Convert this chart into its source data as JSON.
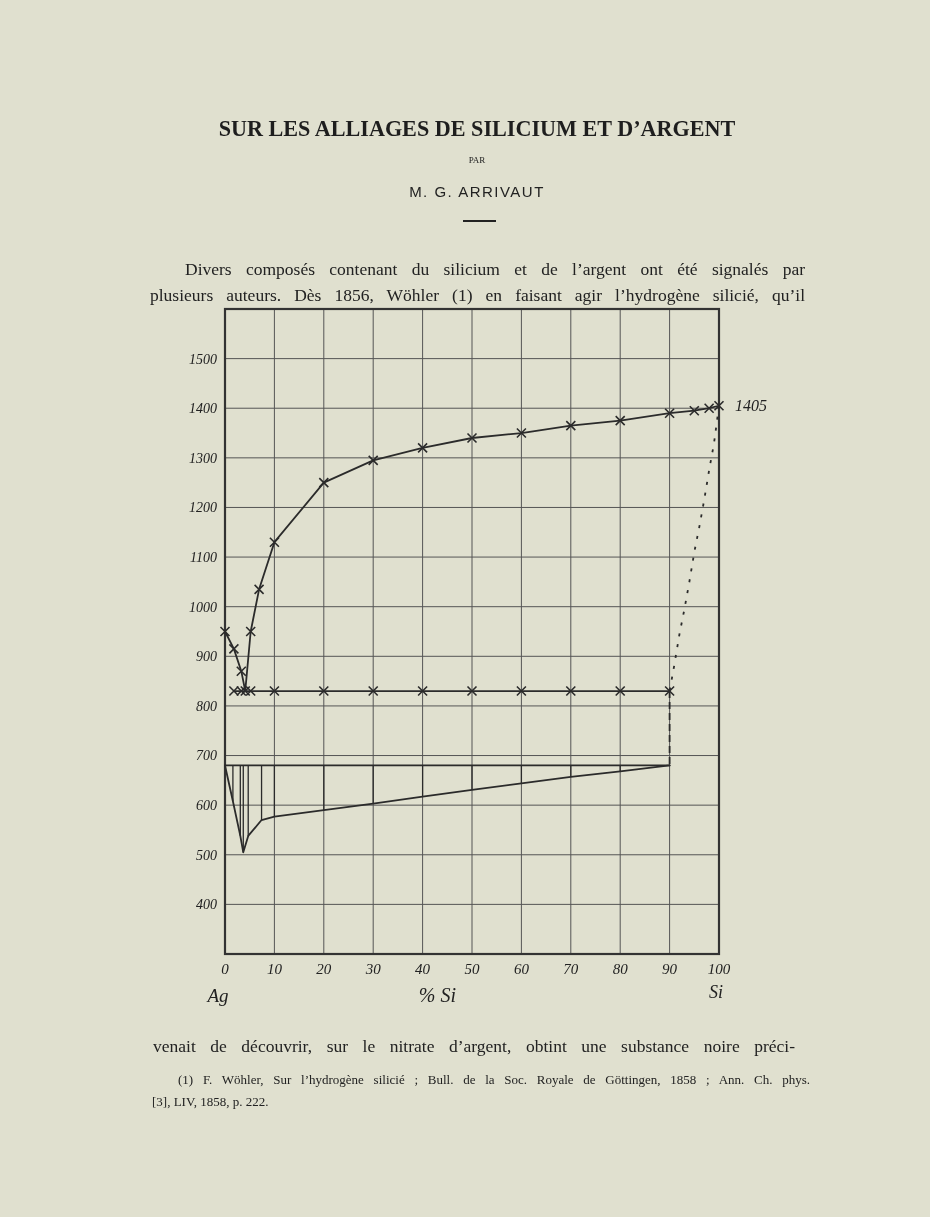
{
  "chart_data": {
    "type": "line",
    "title": "SUR LES ALLIAGES DE SILICIUM ET D’ARGENT",
    "xlabel": "% Si",
    "annotations": [
      "PAR",
      "M. G. ARRIVAUT",
      "Divers composés contenant du silicium et de l’argent ont été signalés par",
      "plusieurs auteurs. Dès 1856, Wöhler (1) en faisant agir l’hydrogène silicié, qu’il",
      "venait de découvrir, sur le nitrate d’argent, obtint une substance noire préci-",
      "(1) F. Wöhler, Sur l’hydrogène silicié ; Bull. de la Soc. Royale de Göttingen, 1858 ; Ann. Ch. phys.",
      "[3], LIV, 1858, p. 222.",
      "Ag",
      "Si",
      {
        "text": "1405",
        "x": 100,
        "y": 1405
      }
    ],
    "xlim": [
      0,
      100
    ],
    "ylim": [
      300,
      1600
    ],
    "xticks": [
      0,
      10,
      20,
      30,
      40,
      50,
      60,
      70,
      80,
      90,
      100
    ],
    "yticks": [
      400,
      500,
      600,
      700,
      800,
      900,
      1000,
      1100,
      1200,
      1300,
      1400,
      1500
    ],
    "grid": true,
    "marker": "cross",
    "line_style": "solid",
    "series": [
      {
        "color": "#2b2b2b",
        "x": [
          0,
          1.8,
          3.3,
          4.1,
          5.2,
          6.9,
          10,
          20,
          30,
          40,
          50,
          60,
          70,
          80,
          90,
          95,
          98,
          100
        ],
        "values": [
          950,
          915,
          870,
          830,
          950,
          1035,
          1130,
          1250,
          1295,
          1320,
          1340,
          1350,
          1365,
          1375,
          1390,
          1395,
          1400,
          1405
        ]
      },
      {
        "color": "#2b2b2b",
        "x": [
          1.8,
          3.3,
          5.2,
          10,
          20,
          30,
          40,
          50,
          60,
          70,
          80,
          90
        ],
        "values": [
          830,
          830,
          830,
          830,
          830,
          830,
          830,
          830,
          830,
          830,
          830,
          830
        ]
      },
      {
        "color": "#2b2b2b",
        "marker": "none",
        "line_style": "dotted",
        "x": [
          100,
          99,
          98,
          97,
          96,
          95,
          94,
          93,
          92,
          91,
          90
        ],
        "values": [
          1405,
          1330,
          1275,
          1215,
          1160,
          1110,
          1050,
          995,
          945,
          885,
          830
        ]
      },
      {
        "color": "#2b2b2b",
        "marker": "none",
        "line_style": "dashed",
        "x": [
          90,
          90
        ],
        "values": [
          830,
          680
        ]
      },
      {
        "color": "#2b2b2b",
        "marker": "none",
        "x": [
          0,
          90
        ],
        "values": [
          680,
          680
        ]
      },
      {
        "color": "#2b2b2b",
        "marker": "none",
        "x": [
          0,
          1.6,
          3.1,
          3.7,
          4.7,
          7.4,
          10,
          20,
          30,
          40,
          50,
          60,
          70,
          80,
          90
        ],
        "values": [
          680,
          608,
          538,
          505,
          538,
          570,
          577,
          590,
          603,
          617,
          631,
          644,
          657,
          668,
          680
        ]
      }
    ]
  }
}
